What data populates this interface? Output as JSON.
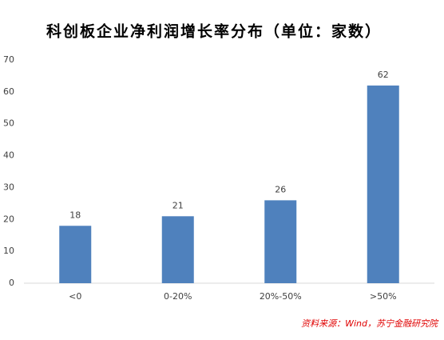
{
  "chart_data": {
    "type": "bar",
    "title": "科创板企业净利润增长率分布（单位：家数）",
    "categories": [
      "<0",
      "0-20%",
      "20%-50%",
      ">50%"
    ],
    "values": [
      18,
      21,
      26,
      62
    ],
    "color": "#4f81bd",
    "ylim": [
      0,
      70
    ],
    "yticks": [
      0,
      10,
      20,
      30,
      40,
      50,
      60,
      70
    ],
    "grid": false,
    "source": "资料来源：Wind，苏宁金融研究院"
  }
}
